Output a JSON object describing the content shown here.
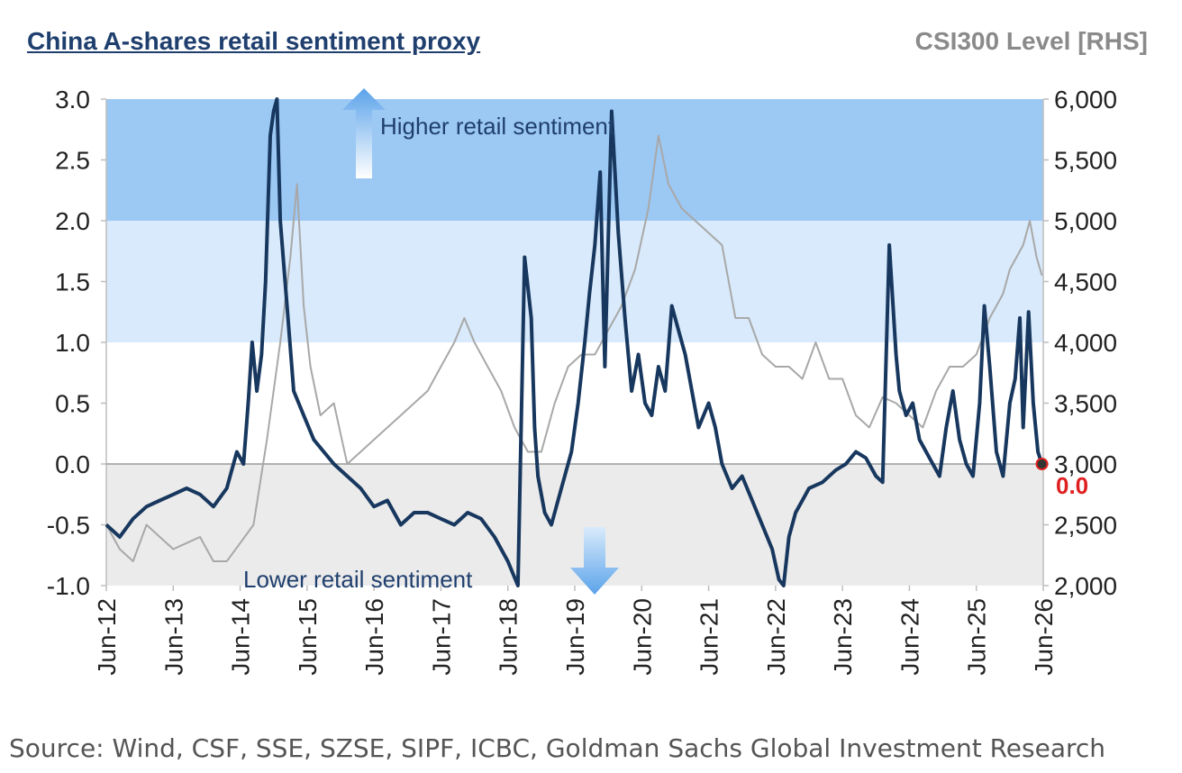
{
  "chart_data": {
    "type": "line",
    "title": "China A-shares retail sentiment proxy",
    "right_axis_title": "CSI300 Level [RHS]",
    "source": "Source: Wind, CSF, SSE, SZSE, SIPF, ICBC, Goldman Sachs Global Investment Research",
    "x_tick_labels": [
      "Jun-12",
      "Jun-13",
      "Jun-14",
      "Jun-15",
      "Jun-16",
      "Jun-17",
      "Jun-18",
      "Jun-19",
      "Jun-20",
      "Jun-21",
      "Jun-22",
      "Jun-23",
      "Jun-24",
      "Jun-25",
      "Jun-26"
    ],
    "x_range": [
      2012.5,
      2026.5
    ],
    "ylim_left": [
      -1.0,
      3.0
    ],
    "ylim_right": [
      2000,
      6000
    ],
    "left_ticks": [
      "-1.0",
      "-0.5",
      "0.0",
      "0.5",
      "1.0",
      "1.5",
      "2.0",
      "2.5",
      "3.0"
    ],
    "right_ticks": [
      "2,000",
      "2,500",
      "3,000",
      "3,500",
      "4,000",
      "4,500",
      "5,000",
      "5,500",
      "6,000"
    ],
    "bands": [
      {
        "from": 2.0,
        "to": 3.0,
        "color": "#9cc8f4"
      },
      {
        "from": 1.0,
        "to": 2.0,
        "color": "#d8eafb"
      },
      {
        "from": -1.0,
        "to": 0.0,
        "color": "#ebebeb"
      }
    ],
    "annotations": {
      "higher": "Higher retail sentiment",
      "lower": "Lower retail sentiment",
      "last_value": "0.0"
    },
    "series": [
      {
        "name": "Retail sentiment proxy",
        "axis": "left",
        "color": "#17375e",
        "x": [
          2012.5,
          2012.7,
          2012.9,
          2013.1,
          2013.3,
          2013.5,
          2013.7,
          2013.9,
          2014.1,
          2014.3,
          2014.45,
          2014.55,
          2014.62,
          2014.68,
          2014.75,
          2014.82,
          2014.88,
          2014.95,
          2015.0,
          2015.05,
          2015.1,
          2015.2,
          2015.3,
          2015.45,
          2015.6,
          2015.75,
          2015.9,
          2016.1,
          2016.3,
          2016.5,
          2016.7,
          2016.9,
          2017.1,
          2017.3,
          2017.5,
          2017.7,
          2017.9,
          2018.1,
          2018.3,
          2018.5,
          2018.65,
          2018.75,
          2018.85,
          2018.9,
          2018.95,
          2019.05,
          2019.15,
          2019.3,
          2019.45,
          2019.55,
          2019.65,
          2019.72,
          2019.8,
          2019.88,
          2019.95,
          2020.05,
          2020.15,
          2020.25,
          2020.35,
          2020.45,
          2020.55,
          2020.65,
          2020.75,
          2020.85,
          2020.95,
          2021.05,
          2021.15,
          2021.25,
          2021.35,
          2021.5,
          2021.6,
          2021.7,
          2021.85,
          2022.0,
          2022.15,
          2022.3,
          2022.45,
          2022.55,
          2022.62,
          2022.7,
          2022.8,
          2022.9,
          2023.0,
          2023.2,
          2023.4,
          2023.55,
          2023.7,
          2023.85,
          2024.0,
          2024.1,
          2024.2,
          2024.3,
          2024.35,
          2024.45,
          2024.55,
          2024.65,
          2024.75,
          2024.85,
          2024.95,
          2025.05,
          2025.15,
          2025.25,
          2025.35,
          2025.45,
          2025.55,
          2025.62,
          2025.7,
          2025.8,
          2025.9,
          2026.0,
          2026.08,
          2026.15,
          2026.2,
          2026.28,
          2026.35,
          2026.42,
          2026.48
        ],
        "y": [
          -0.5,
          -0.6,
          -0.45,
          -0.35,
          -0.3,
          -0.25,
          -0.2,
          -0.25,
          -0.35,
          -0.2,
          0.1,
          0.0,
          0.5,
          1.0,
          0.6,
          0.9,
          1.5,
          2.7,
          2.9,
          3.0,
          2.0,
          1.3,
          0.6,
          0.4,
          0.2,
          0.1,
          0.0,
          -0.1,
          -0.2,
          -0.35,
          -0.3,
          -0.5,
          -0.4,
          -0.4,
          -0.45,
          -0.5,
          -0.4,
          -0.45,
          -0.6,
          -0.8,
          -1.0,
          1.7,
          1.2,
          0.3,
          -0.1,
          -0.4,
          -0.5,
          -0.2,
          0.1,
          0.5,
          1.0,
          1.4,
          1.8,
          2.4,
          0.8,
          2.9,
          1.9,
          1.2,
          0.6,
          0.9,
          0.5,
          0.4,
          0.8,
          0.6,
          1.3,
          1.1,
          0.9,
          0.6,
          0.3,
          0.5,
          0.3,
          0.0,
          -0.2,
          -0.1,
          -0.3,
          -0.5,
          -0.7,
          -0.95,
          -1.0,
          -0.6,
          -0.4,
          -0.3,
          -0.2,
          -0.15,
          -0.05,
          0.0,
          0.1,
          0.05,
          -0.1,
          -0.15,
          1.8,
          0.9,
          0.6,
          0.4,
          0.5,
          0.2,
          0.1,
          0.0,
          -0.1,
          0.3,
          0.6,
          0.2,
          0.0,
          -0.1,
          0.5,
          1.3,
          0.8,
          0.1,
          -0.1,
          0.5,
          0.7,
          1.2,
          0.3,
          1.25,
          0.5,
          0.1,
          0.0
        ]
      },
      {
        "name": "CSI300 Level [RHS]",
        "axis": "right",
        "color": "#a8a8a8",
        "x": [
          2012.5,
          2012.7,
          2012.9,
          2013.1,
          2013.3,
          2013.5,
          2013.7,
          2013.9,
          2014.1,
          2014.3,
          2014.5,
          2014.7,
          2014.9,
          2015.1,
          2015.25,
          2015.35,
          2015.45,
          2015.55,
          2015.7,
          2015.9,
          2016.1,
          2016.3,
          2016.5,
          2016.7,
          2016.9,
          2017.1,
          2017.3,
          2017.5,
          2017.7,
          2017.85,
          2018.0,
          2018.2,
          2018.4,
          2018.6,
          2018.8,
          2019.0,
          2019.2,
          2019.4,
          2019.6,
          2019.8,
          2020.0,
          2020.2,
          2020.4,
          2020.6,
          2020.75,
          2020.9,
          2021.1,
          2021.3,
          2021.5,
          2021.7,
          2021.9,
          2022.1,
          2022.3,
          2022.5,
          2022.7,
          2022.9,
          2023.1,
          2023.3,
          2023.5,
          2023.7,
          2023.9,
          2024.1,
          2024.3,
          2024.5,
          2024.7,
          2024.9,
          2025.1,
          2025.3,
          2025.5,
          2025.7,
          2025.9,
          2026.0,
          2026.1,
          2026.2,
          2026.3,
          2026.4,
          2026.48
        ],
        "y": [
          2500,
          2300,
          2200,
          2500,
          2400,
          2300,
          2350,
          2400,
          2200,
          2200,
          2350,
          2500,
          3200,
          4000,
          4700,
          5300,
          4300,
          3800,
          3400,
          3500,
          3000,
          3100,
          3200,
          3300,
          3400,
          3500,
          3600,
          3800,
          4000,
          4200,
          4000,
          3800,
          3600,
          3300,
          3100,
          3100,
          3500,
          3800,
          3900,
          3900,
          4100,
          4300,
          4600,
          5100,
          5700,
          5300,
          5100,
          5000,
          4900,
          4800,
          4200,
          4200,
          3900,
          3800,
          3800,
          3700,
          4000,
          3700,
          3700,
          3400,
          3300,
          3550,
          3500,
          3400,
          3300,
          3600,
          3800,
          3800,
          3900,
          4200,
          4400,
          4600,
          4700,
          4800,
          5000,
          4700,
          4550
        ]
      }
    ]
  }
}
